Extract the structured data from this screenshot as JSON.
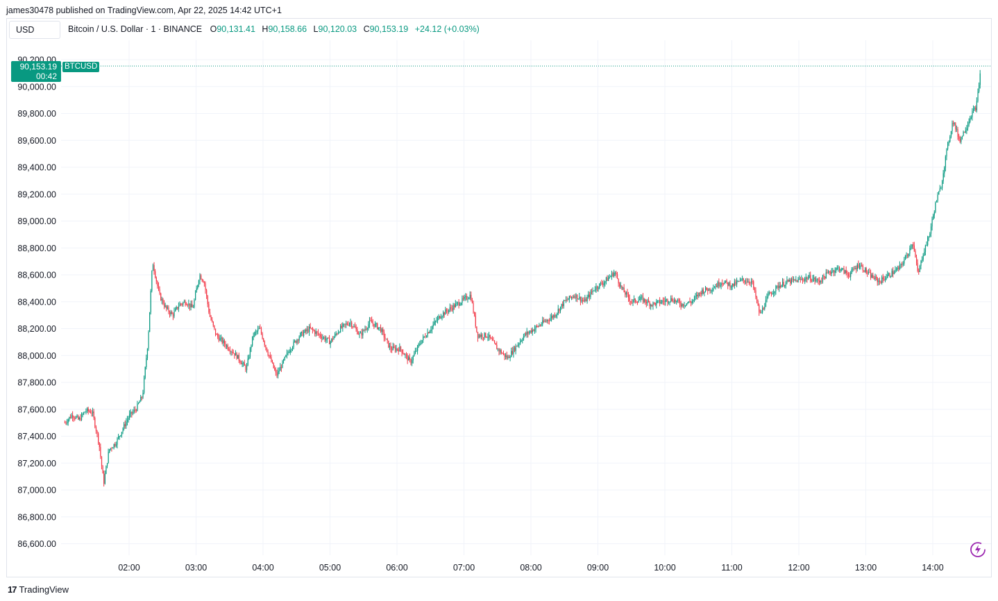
{
  "header": {
    "published_text": "james30478 published on TradingView.com, Apr 22, 2025 14:42 UTC+1"
  },
  "toolbar": {
    "currency": "USD"
  },
  "legend": {
    "symbol": "Bitcoin / U.S. Dollar · 1 · BINANCE",
    "open_label": "O",
    "open": "90,131.41",
    "high_label": "H",
    "high": "90,158.66",
    "low_label": "L",
    "low": "90,120.03",
    "close_label": "C",
    "close": "90,153.19",
    "change": "+24.12 (+0.03%)"
  },
  "price_tag": {
    "price": "90,153.19",
    "countdown": "00:42",
    "symbol": "BTCUSD"
  },
  "footer": {
    "brand": "TradingView",
    "logo_mark": "17"
  },
  "colors": {
    "up": "#089981",
    "down": "#f23645",
    "grid": "#f0f3fa",
    "text": "#131722",
    "price_line": "#089981"
  },
  "chart_data": {
    "type": "candlestick",
    "title": "Bitcoin / U.S. Dollar · 1 · BINANCE",
    "xlabel": "",
    "ylabel": "",
    "x_ticks": [
      "02:00",
      "03:00",
      "04:00",
      "05:00",
      "06:00",
      "07:00",
      "08:00",
      "09:00",
      "10:00",
      "11:00",
      "12:00",
      "13:00",
      "14:00"
    ],
    "y_ticks": [
      "90,200.00",
      "90,000.00",
      "89,800.00",
      "89,600.00",
      "89,400.00",
      "89,200.00",
      "89,000.00",
      "88,800.00",
      "88,600.00",
      "88,400.00",
      "88,200.00",
      "88,000.00",
      "87,800.00",
      "87,600.00",
      "87,400.00",
      "87,200.00",
      "87,000.00",
      "86,800.00",
      "86,600.00"
    ],
    "y_tick_values": [
      90200,
      90000,
      89800,
      89600,
      89400,
      89200,
      89000,
      88800,
      88600,
      88400,
      88200,
      88000,
      87800,
      87600,
      87400,
      87200,
      87000,
      86800,
      86600
    ],
    "ylim": [
      86500,
      90300
    ],
    "time_range_hours": [
      1.04,
      14.72
    ],
    "grid": true,
    "last_price": 90153.19,
    "series": [
      {
        "name": "BTCUSD",
        "anchors_hour_price": [
          [
            1.04,
            87500
          ],
          [
            1.15,
            87560
          ],
          [
            1.25,
            87520
          ],
          [
            1.35,
            87590
          ],
          [
            1.45,
            87580
          ],
          [
            1.55,
            87350
          ],
          [
            1.62,
            87050
          ],
          [
            1.7,
            87300
          ],
          [
            1.8,
            87350
          ],
          [
            1.9,
            87450
          ],
          [
            2.0,
            87550
          ],
          [
            2.1,
            87600
          ],
          [
            2.2,
            87700
          ],
          [
            2.28,
            88100
          ],
          [
            2.35,
            88700
          ],
          [
            2.45,
            88450
          ],
          [
            2.55,
            88350
          ],
          [
            2.65,
            88300
          ],
          [
            2.75,
            88380
          ],
          [
            2.85,
            88400
          ],
          [
            2.95,
            88350
          ],
          [
            3.05,
            88600
          ],
          [
            3.12,
            88550
          ],
          [
            3.2,
            88300
          ],
          [
            3.3,
            88150
          ],
          [
            3.4,
            88100
          ],
          [
            3.5,
            88050
          ],
          [
            3.6,
            88000
          ],
          [
            3.75,
            87900
          ],
          [
            3.85,
            88150
          ],
          [
            3.95,
            88200
          ],
          [
            4.05,
            88050
          ],
          [
            4.2,
            87850
          ],
          [
            4.3,
            87950
          ],
          [
            4.4,
            88050
          ],
          [
            4.55,
            88150
          ],
          [
            4.7,
            88200
          ],
          [
            4.85,
            88150
          ],
          [
            5.0,
            88100
          ],
          [
            5.15,
            88200
          ],
          [
            5.3,
            88250
          ],
          [
            5.45,
            88150
          ],
          [
            5.6,
            88250
          ],
          [
            5.75,
            88200
          ],
          [
            5.9,
            88050
          ],
          [
            6.05,
            88050
          ],
          [
            6.2,
            87950
          ],
          [
            6.35,
            88100
          ],
          [
            6.5,
            88200
          ],
          [
            6.65,
            88300
          ],
          [
            6.8,
            88350
          ],
          [
            6.95,
            88400
          ],
          [
            7.1,
            88450
          ],
          [
            7.2,
            88150
          ],
          [
            7.35,
            88150
          ],
          [
            7.5,
            88050
          ],
          [
            7.65,
            87980
          ],
          [
            7.75,
            88050
          ],
          [
            7.9,
            88150
          ],
          [
            8.05,
            88200
          ],
          [
            8.2,
            88250
          ],
          [
            8.35,
            88300
          ],
          [
            8.5,
            88400
          ],
          [
            8.65,
            88450
          ],
          [
            8.8,
            88400
          ],
          [
            8.95,
            88500
          ],
          [
            9.1,
            88550
          ],
          [
            9.25,
            88620
          ],
          [
            9.35,
            88500
          ],
          [
            9.5,
            88400
          ],
          [
            9.65,
            88420
          ],
          [
            9.8,
            88380
          ],
          [
            9.95,
            88400
          ],
          [
            10.1,
            88420
          ],
          [
            10.25,
            88380
          ],
          [
            10.4,
            88400
          ],
          [
            10.55,
            88480
          ],
          [
            10.7,
            88500
          ],
          [
            10.85,
            88550
          ],
          [
            11.0,
            88520
          ],
          [
            11.15,
            88560
          ],
          [
            11.3,
            88550
          ],
          [
            11.42,
            88300
          ],
          [
            11.55,
            88450
          ],
          [
            11.7,
            88520
          ],
          [
            11.85,
            88550
          ],
          [
            12.0,
            88560
          ],
          [
            12.15,
            88580
          ],
          [
            12.3,
            88550
          ],
          [
            12.45,
            88620
          ],
          [
            12.6,
            88650
          ],
          [
            12.75,
            88600
          ],
          [
            12.9,
            88680
          ],
          [
            13.05,
            88600
          ],
          [
            13.2,
            88550
          ],
          [
            13.35,
            88600
          ],
          [
            13.5,
            88650
          ],
          [
            13.62,
            88750
          ],
          [
            13.7,
            88850
          ],
          [
            13.78,
            88600
          ],
          [
            13.85,
            88750
          ],
          [
            13.95,
            88900
          ],
          [
            14.05,
            89150
          ],
          [
            14.12,
            89250
          ],
          [
            14.2,
            89500
          ],
          [
            14.3,
            89750
          ],
          [
            14.4,
            89600
          ],
          [
            14.5,
            89700
          ],
          [
            14.58,
            89800
          ],
          [
            14.65,
            89850
          ],
          [
            14.72,
            90150
          ]
        ]
      }
    ]
  }
}
